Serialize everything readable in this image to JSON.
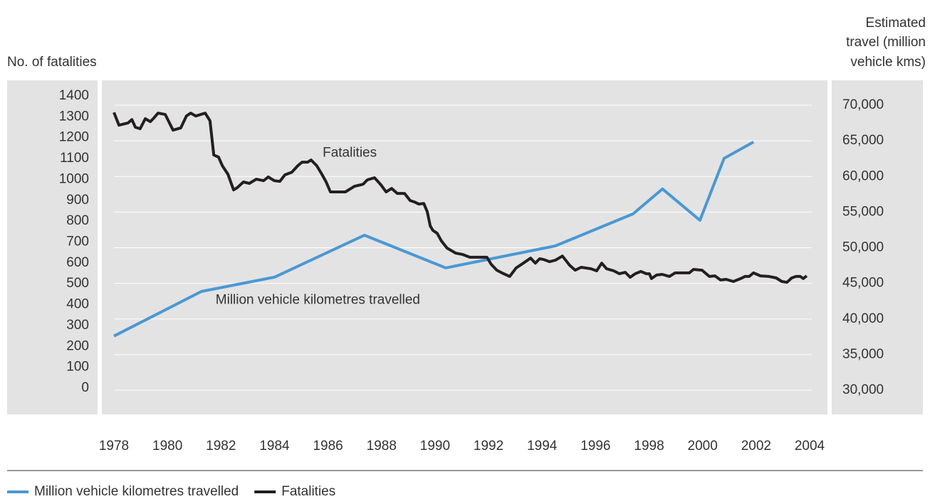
{
  "chart_data": {
    "type": "line",
    "ylabel": "No. of fatalities",
    "y2label": [
      "Estimated",
      "travel (million",
      "vehicle kms)"
    ],
    "annotations": [
      {
        "text": "Fatalities",
        "x": 1985.8,
        "y": 1125
      },
      {
        "text": "Million vehicle kilometres travelled",
        "x": 1981.8,
        "y": 420
      }
    ],
    "xlim": [
      1978,
      2004
    ],
    "xticks": [
      1978,
      1980,
      1982,
      1984,
      1986,
      1988,
      1990,
      1992,
      1994,
      1996,
      1998,
      2000,
      2002,
      2004
    ],
    "ylim": [
      0,
      1400
    ],
    "yticks": [
      0,
      100,
      200,
      300,
      400,
      500,
      600,
      700,
      800,
      900,
      1000,
      1100,
      1200,
      1300,
      1400
    ],
    "y2lim": [
      30000,
      70000
    ],
    "y2ticks": [
      {
        "value": 30000,
        "label": "30,000"
      },
      {
        "value": 35000,
        "label": "35,000"
      },
      {
        "value": 40000,
        "label": "40,000"
      },
      {
        "value": 45000,
        "label": "45,000"
      },
      {
        "value": 50000,
        "label": "50,000"
      },
      {
        "value": 55000,
        "label": "55,000"
      },
      {
        "value": 60000,
        "label": "60,000"
      },
      {
        "value": 65000,
        "label": "65,000"
      },
      {
        "value": 70000,
        "label": "70,000"
      }
    ],
    "grid": true,
    "legend": "bottom",
    "series": [
      {
        "name": "Million vehicle kilometres travelled",
        "color": "#4a98d3",
        "axis": "y2",
        "x": [
          1978.0,
          1981.27,
          1984.0,
          1987.36,
          1990.4,
          1994.5,
          1997.4,
          1998.5,
          1999.9,
          2000.8,
          2001.9
        ],
        "values": [
          37600,
          43870,
          45870,
          51760,
          47170,
          50260,
          54750,
          58250,
          53850,
          62540,
          64830
        ]
      },
      {
        "name": "Fatalities",
        "color": "#231f20",
        "axis": "y",
        "x": [
          1978.0,
          1978.19,
          1978.53,
          1978.67,
          1978.8,
          1978.98,
          1979.17,
          1979.36,
          1979.49,
          1979.65,
          1979.92,
          1980.21,
          1980.5,
          1980.71,
          1980.87,
          1981.06,
          1981.41,
          1981.59,
          1981.73,
          1981.91,
          1982.05,
          1982.26,
          1982.47,
          1982.6,
          1982.84,
          1983.06,
          1983.32,
          1983.59,
          1983.77,
          1983.99,
          1984.2,
          1984.39,
          1984.65,
          1984.87,
          1985.03,
          1985.24,
          1985.37,
          1985.58,
          1985.77,
          1985.93,
          1986.09,
          1986.38,
          1986.65,
          1986.99,
          1987.31,
          1987.47,
          1987.74,
          1987.98,
          1988.17,
          1988.38,
          1988.59,
          1988.86,
          1989.07,
          1989.23,
          1989.39,
          1989.58,
          1989.71,
          1989.82,
          1989.92,
          1990.08,
          1990.24,
          1990.45,
          1990.77,
          1991.04,
          1991.3,
          1991.62,
          1991.94,
          1992.1,
          1992.31,
          1992.5,
          1992.79,
          1993.03,
          1993.3,
          1993.57,
          1993.75,
          1993.91,
          1994.07,
          1994.28,
          1994.5,
          1994.76,
          1995.03,
          1995.24,
          1995.46,
          1995.83,
          1996.04,
          1996.23,
          1996.41,
          1996.68,
          1996.89,
          1997.11,
          1997.29,
          1997.48,
          1997.69,
          1997.9,
          1998.01,
          1998.09,
          1998.28,
          1998.49,
          1998.76,
          1998.97,
          1999.24,
          1999.5,
          1999.66,
          1999.98,
          2000.25,
          2000.46,
          2000.67,
          2000.88,
          2001.15,
          2001.42,
          2001.58,
          2001.74,
          2001.9,
          2002.16,
          2002.48,
          2002.75,
          2002.96,
          2003.15,
          2003.33,
          2003.49,
          2003.65,
          2003.76,
          2003.89
        ],
        "values": [
          1321,
          1260,
          1271,
          1287,
          1250,
          1243,
          1291,
          1277,
          1294,
          1318,
          1311,
          1236,
          1247,
          1304,
          1318,
          1304,
          1318,
          1281,
          1117,
          1107,
          1066,
          1025,
          950,
          960,
          988,
          981,
          1001,
          994,
          1012,
          994,
          991,
          1022,
          1035,
          1066,
          1083,
          1083,
          1093,
          1066,
          1025,
          988,
          940,
          940,
          940,
          967,
          977,
          998,
          1008,
          974,
          940,
          957,
          933,
          933,
          899,
          892,
          882,
          885,
          845,
          777,
          756,
          742,
          705,
          671,
          647,
          640,
          627,
          627,
          627,
          593,
          565,
          552,
          535,
          576,
          599,
          623,
          599,
          620,
          616,
          606,
          613,
          633,
          589,
          565,
          579,
          572,
          562,
          599,
          572,
          562,
          548,
          555,
          531,
          548,
          559,
          548,
          548,
          525,
          542,
          545,
          535,
          552,
          552,
          552,
          569,
          565,
          535,
          538,
          518,
          521,
          511,
          525,
          535,
          535,
          552,
          538,
          535,
          528,
          511,
          507,
          528,
          535,
          535,
          525,
          538
        ]
      }
    ]
  }
}
